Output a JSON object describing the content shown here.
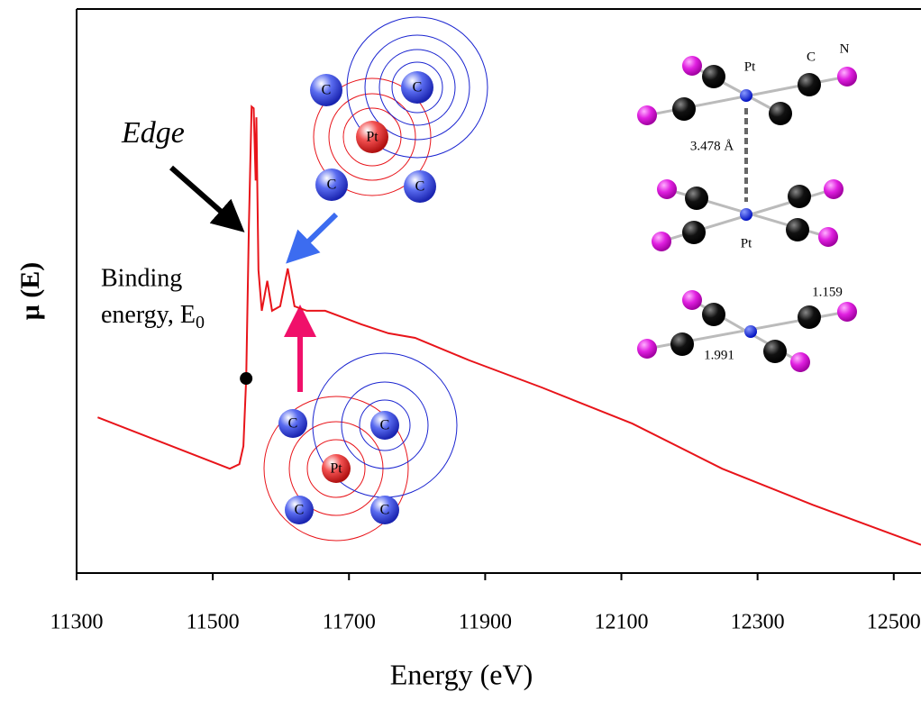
{
  "chart_data": {
    "type": "line",
    "x_label": "Energy (eV)",
    "y_label": "μ (E)",
    "xlim": [
      11300,
      12540
    ],
    "ylim": [
      0,
      1
    ],
    "xticks": [
      11300,
      11500,
      11700,
      11900,
      12100,
      12300,
      12500
    ],
    "series": [
      {
        "color": "#e8141a",
        "x": [
          11331,
          11525,
          11539,
          11545,
          11549,
          11553,
          11557,
          11560,
          11563,
          11564,
          11567,
          11572,
          11580,
          11587,
          11599,
          11610,
          11620,
          11638,
          11665,
          11718,
          11758,
          11797,
          11877,
          11983,
          12116,
          12248,
          12381,
          12540
        ],
        "values": [
          0.276,
          0.185,
          0.193,
          0.225,
          0.345,
          0.617,
          0.827,
          0.824,
          0.696,
          0.808,
          0.537,
          0.465,
          0.518,
          0.465,
          0.473,
          0.54,
          0.473,
          0.465,
          0.465,
          0.441,
          0.425,
          0.417,
          0.377,
          0.329,
          0.265,
          0.185,
          0.121,
          0.05
        ]
      }
    ],
    "marker": {
      "x": 11549,
      "y": 0.345,
      "color": "#000000"
    },
    "labels": {
      "edge": "Edge",
      "binding_line1": "Binding",
      "binding_line2": "energy, E",
      "binding_sub": "0",
      "platinum": "Pt",
      "carbon": "C",
      "nitrogen": "N",
      "pt_pt_distance": "3.478 Å",
      "cn_bond": "1.159",
      "pt_c_bond": "1.991"
    }
  }
}
